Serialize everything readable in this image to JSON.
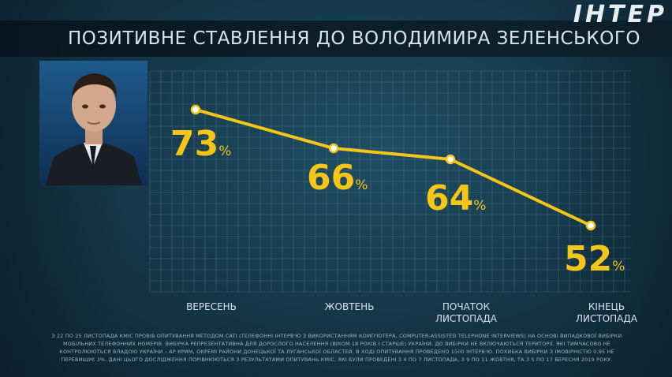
{
  "brand": {
    "logo": "ІНТЕР"
  },
  "title": "ПОЗИТИВНЕ СТАВЛЕННЯ ДО ВОЛОДИМИРА ЗЕЛЕНСЬКОГО",
  "colors": {
    "line": "#f5c518",
    "label": "#f5c518",
    "grid": "#5f8aa0",
    "axis_text": "#d8e3ea"
  },
  "chart_data": {
    "type": "line",
    "title": "ПОЗИТИВНЕ СТАВЛЕННЯ ДО ВОЛОДИМИРА ЗЕЛЕНСЬКОГО",
    "categories": [
      "ВЕРЕСЕНЬ",
      "ЖОВТЕНЬ",
      "ПОЧАТОК ЛИСТОПАДА",
      "КІНЕЦЬ ЛИСТОПАДА"
    ],
    "category_lines": [
      [
        "ВЕРЕСЕНЬ"
      ],
      [
        "ЖОВТЕНЬ"
      ],
      [
        "ПОЧАТОК",
        "ЛИСТОПАДА"
      ],
      [
        "КІНЕЦЬ",
        "ЛИСТОПАДА"
      ]
    ],
    "values": [
      73,
      66,
      64,
      52
    ],
    "value_unit": "%",
    "ylim": [
      40,
      80
    ],
    "grid": true,
    "legend": "none"
  },
  "footnote": "З 22 ПО 25 ЛИСТОПАДА КМІС ПРОВІВ ОПИТУВАННЯ МЕТОДОМ CATI (ТЕЛЕФОННІ ІНТЕРВ'Ю З ВИКОРИСТАННЯМ КОМП'ЮТЕРА, COMPUTER-ASSISTED TELEPHONE INTERVIEWS) НА ОСНОВІ ВИПАДКОВОЇ ВИБІРКИ МОБІЛЬНИХ ТЕЛЕФОННИХ НОМЕРІВ. ВИБІРКА РЕПРЕЗЕНТАТИВНА ДЛЯ ДОРОСЛОГО НАСЕЛЕННЯ (ВІКОМ 18 РОКІВ І СТАРШЕ) УКРАЇНИ. ДО ВИБІРКИ НЕ ВКЛЮЧАЮТЬСЯ ТЕРИТОРІЇ, ЯКІ ТИМЧАСОВО НЕ КОНТРОЛЮЮТЬСЯ ВЛАДОЮ УКРАЇНИ – АР КРИМ, ОКРЕМІ РАЙОНИ ДОНЕЦЬКОЇ ТА ЛУГАНСЬКОЇ ОБЛАСТЕЙ. В ХОДІ ОПИТУВАННЯ ПРОВЕДЕНО 1500 ІНТЕРВ'Ю. ПОХИБКА ВИБІРКИ З ІМОВІРНІСТЮ 0,95 НЕ ПЕРЕВИЩУЄ 3%. ДАНІ ЦЬОГО ДОСЛІДЖЕННЯ ПОРІВНЮЮТЬСЯ З РЕЗУЛЬТАТАМИ ОПИТУВАНЬ КМІС, ЯКІ БУЛИ ПРОВЕДЕНІ З 4 ПО 7 ЛИСТОПАДА, З 9 ПО 11 ЖОВТНЯ, ТА З 5 ПО 17 ВЕРЕСНЯ 2019 РОКУ."
}
